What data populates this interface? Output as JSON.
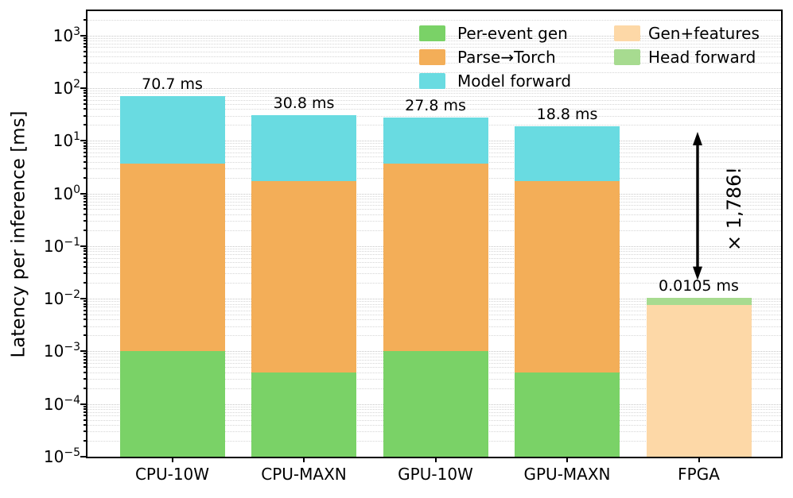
{
  "chart_data": {
    "type": "bar",
    "stacked": true,
    "y_scale": "log",
    "title": "",
    "xlabel": "",
    "ylabel": "Latency per inference [ms]",
    "ylim": [
      1e-05,
      2900
    ],
    "y_major_tick_exponents": [
      3,
      2,
      1,
      0,
      -1,
      -2,
      -3,
      -4,
      -5
    ],
    "grid": "dotted major and minor horizontal gridlines",
    "categories": [
      "CPU-10W",
      "CPU-MAXN",
      "GPU-10W",
      "GPU-MAXN",
      "FPGA"
    ],
    "totals_ms": [
      70.7,
      30.8,
      27.8,
      18.8,
      0.0105
    ],
    "bar_total_labels": [
      "70.7 ms",
      "30.8 ms",
      "27.8 ms",
      "18.8 ms",
      "0.0105 ms"
    ],
    "baseline_ms": 1e-05,
    "series": [
      {
        "name": "Per-event gen",
        "color": "#7ad267",
        "cumulative_tops_ms": [
          0.001,
          0.0004,
          0.001,
          0.0004,
          null
        ]
      },
      {
        "name": "Parse→Torch",
        "color": "#f3ae58",
        "cumulative_tops_ms": [
          3.7,
          1.7,
          3.7,
          1.7,
          null
        ]
      },
      {
        "name": "Model forward",
        "color": "#69dbe1",
        "cumulative_tops_ms": [
          70.7,
          30.8,
          27.8,
          18.8,
          null
        ]
      },
      {
        "name": "Gen+features",
        "color": "#fdd8a7",
        "cumulative_tops_ms": [
          null,
          null,
          null,
          null,
          0.0077
        ]
      },
      {
        "name": "Head forward",
        "color": "#a7db90",
        "cumulative_tops_ms": [
          null,
          null,
          null,
          null,
          0.0105
        ]
      }
    ],
    "legend": {
      "frame": false,
      "position": "upper center-right, 2 columns",
      "columns": [
        [
          "Per-event gen",
          "Parse→Torch",
          "Model forward"
        ],
        [
          "Gen+features",
          "Head forward"
        ]
      ]
    },
    "annotation": {
      "text": "× 1,786!",
      "arrow_span_ms": [
        0.023,
        15.0
      ],
      "arrow_over_category": "FPGA"
    },
    "axis_color": "#000000",
    "background_color": "#ffffff"
  }
}
